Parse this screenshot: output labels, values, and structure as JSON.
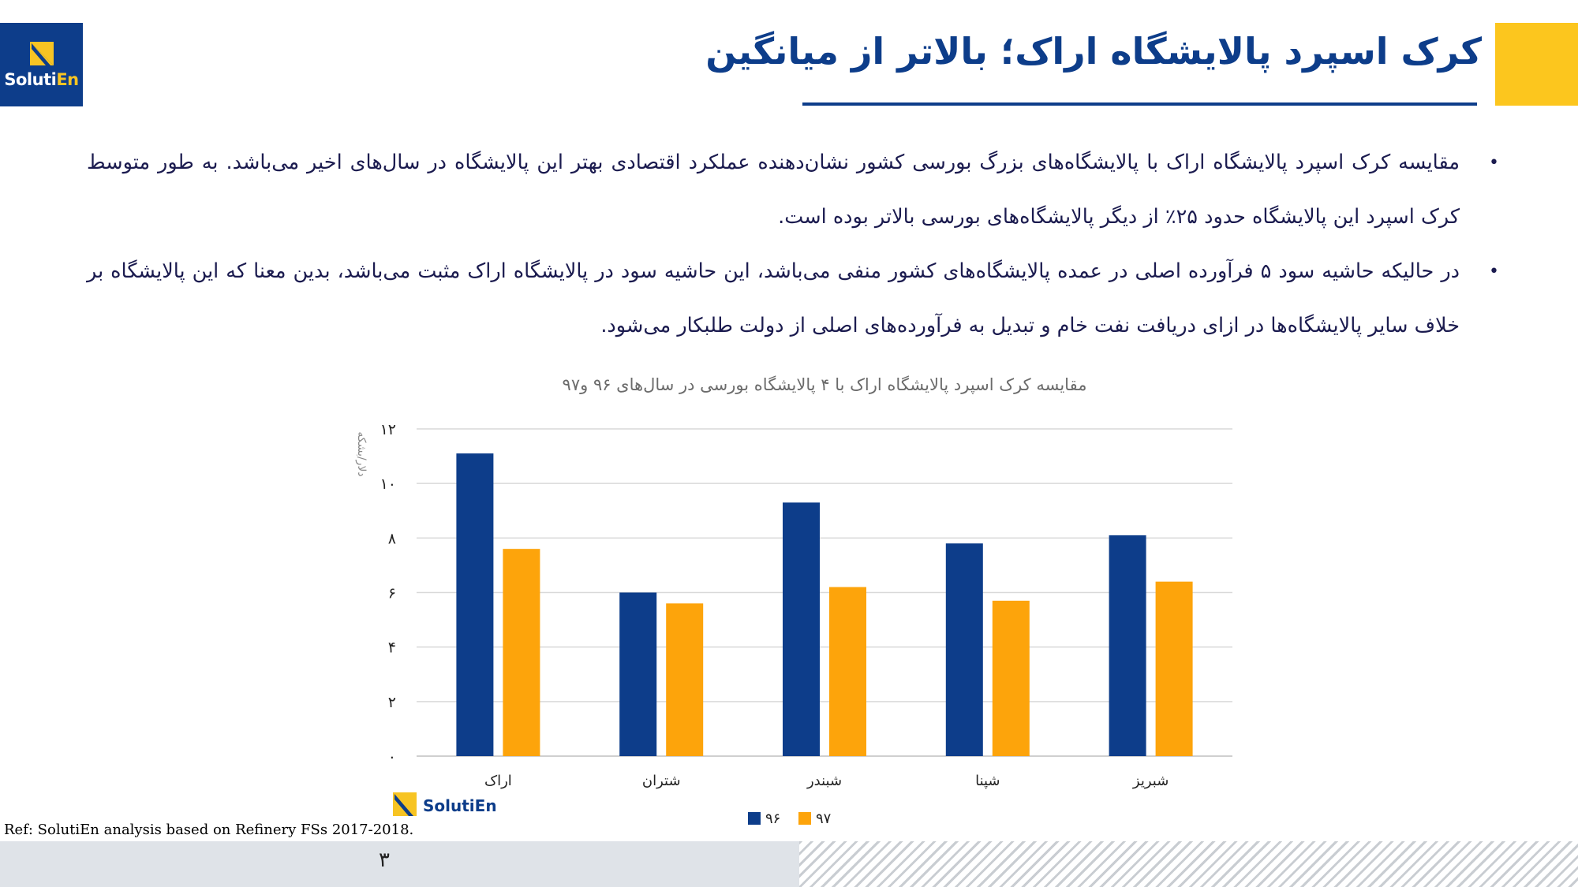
{
  "brand": {
    "logo_text_main": "Soluti",
    "logo_text_accent": "En",
    "colors": {
      "navy": "#0d3d8a",
      "yellow": "#fcc61e",
      "text": "#1b1b4f"
    }
  },
  "title": "کرک اسپرد پالایشگاه اراک؛ بالاتر از میانگین",
  "bullets": [
    {
      "icon": "bullet-dot",
      "text": "مقایسه کرک اسپرد پالایشگاه اراک با پالایشگاه‌های بزرگ بورسی کشور نشان‌دهنده عملکرد اقتصادی بهتر این پالایشگاه در سال‌های اخیر می‌باشد. به طور متوسط کرک اسپرد این پالایشگاه حدود ۲۵٪ از دیگر پالایشگاه‌های بورسی بالاتر بوده است."
    },
    {
      "icon": "bullet-dot",
      "text": "در حالیکه حاشیه سود ۵ فرآورده اصلی در عمده پالایشگاه‌های کشور منفی می‌باشد، این حاشیه سود در پالایشگاه اراک مثبت می‌باشد، بدین معنا که این پالایشگاه بر خلاف سایر پالایشگاه‌ها در ازای دریافت نفت خام و تبدیل به فرآورده‌های اصلی از دولت طلبکار می‌شود."
    }
  ],
  "chart_data": {
    "type": "bar",
    "title": "مقایسه کرک اسپرد پالایشگاه اراک با ۴ پالایشگاه بورسی در سال‌های ۹۶ و۹۷",
    "xlabel": "",
    "ylabel": "دلار/بشکه",
    "ylim": [
      0,
      12
    ],
    "yticks": [
      0,
      2,
      4,
      6,
      8,
      10,
      12
    ],
    "ytick_labels": [
      "۰",
      "۲",
      "۴",
      "۶",
      "۸",
      "۱۰",
      "۱۲"
    ],
    "grid": true,
    "legend_position": "bottom",
    "categories": [
      "اراک",
      "شتران",
      "شبندر",
      "شپنا",
      "شبریز"
    ],
    "series": [
      {
        "name": "۹۶",
        "color": "#0d3d8a",
        "values": [
          11.1,
          6.0,
          9.3,
          7.8,
          8.1
        ]
      },
      {
        "name": "۹۷",
        "color": "#fda40b",
        "values": [
          7.6,
          5.6,
          6.2,
          5.7,
          6.4
        ]
      }
    ],
    "watermark_logo_text": "SolutiEn"
  },
  "footer": {
    "reference": "Ref: SolutiEn analysis based on Refinery FSs 2017-2018.",
    "page_number": "۳"
  }
}
